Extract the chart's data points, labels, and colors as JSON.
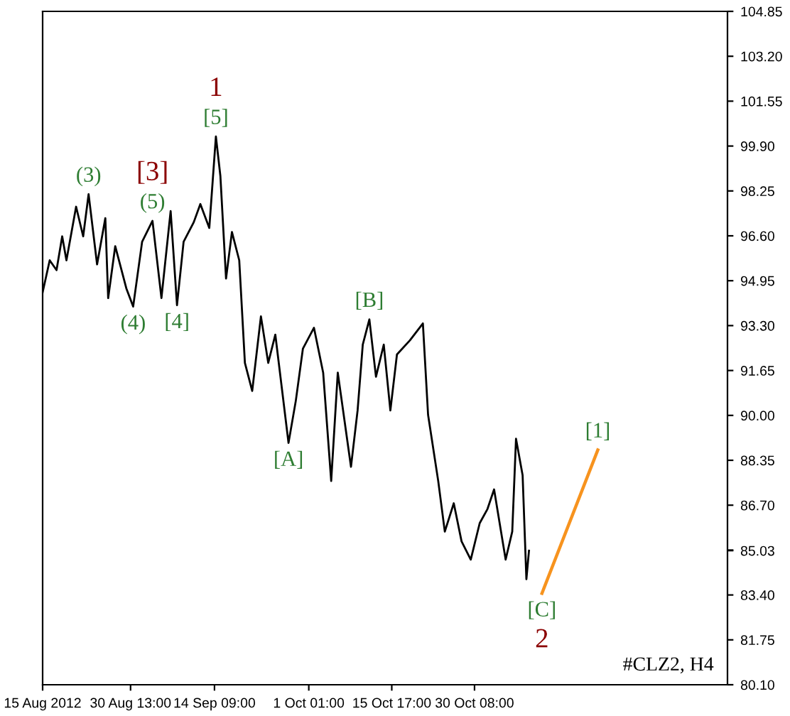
{
  "chart_data": {
    "type": "line",
    "x": [
      "2012-08-15T00:00",
      "2012-08-16T06:00",
      "2012-08-17T11:00",
      "2012-08-18T11:00",
      "2012-08-19T05:00",
      "2012-08-20T22:00",
      "2012-08-22T04:00",
      "2012-08-23T03:00",
      "2012-08-24T15:00",
      "2012-08-26T02:00",
      "2012-08-26T14:00",
      "2012-08-27T20:00",
      "2012-08-29T19:00",
      "2012-08-31T00:00",
      "2012-09-01T14:00",
      "2012-09-03T10:00",
      "2012-09-05T00:00",
      "2012-09-06T15:00",
      "2012-09-07T18:00",
      "2012-09-08T22:00",
      "2012-09-10T17:00",
      "2012-09-11T21:00",
      "2012-09-13T11:00",
      "2012-09-14T15:00",
      "2012-09-15T10:00",
      "2012-09-16T10:00",
      "2012-09-17T11:00",
      "2012-09-18T18:00",
      "2012-09-19T18:00",
      "2012-09-21T01:00",
      "2012-09-22T14:00",
      "2012-09-23T21:00",
      "2012-09-25T03:00",
      "2012-09-27T11:00",
      "2012-09-28T18:00",
      "2012-09-30T00:00",
      "2012-10-01T23:00",
      "2012-10-03T14:00",
      "2012-10-05T00:00",
      "2012-10-06T04:00",
      "2012-10-08T12:00",
      "2012-10-09T16:00",
      "2012-10-10T14:00",
      "2012-10-11T18:00",
      "2012-10-12T22:00",
      "2012-10-14T07:00",
      "2012-10-15T11:00",
      "2012-10-16T15:00",
      "2012-10-18T22:00",
      "2012-10-21T05:00",
      "2012-10-22T03:00",
      "2012-10-23T22:00",
      "2012-10-25T02:00",
      "2012-10-26T16:00",
      "2012-10-28T01:00",
      "2012-10-29T16:00",
      "2012-10-31T06:00",
      "2012-11-01T15:00",
      "2012-11-02T19:00",
      "2012-11-04T20:00",
      "2012-11-06T00:00",
      "2012-11-06T16:00",
      "2012-11-07T20:00",
      "2012-11-08T12:00",
      "2012-11-08T23:00"
    ],
    "series": [
      {
        "color": "#000000",
        "values": [
          94.52,
          95.7,
          95.34,
          96.58,
          95.7,
          97.67,
          96.58,
          98.13,
          95.55,
          97.25,
          94.31,
          96.22,
          94.67,
          94.0,
          96.38,
          97.15,
          94.31,
          97.51,
          94.05,
          96.38,
          97.1,
          97.77,
          96.89,
          100.25,
          98.8,
          95.03,
          96.74,
          95.7,
          91.93,
          90.9,
          93.64,
          91.93,
          92.97,
          88.99,
          90.54,
          92.45,
          93.22,
          91.57,
          87.59,
          91.57,
          88.11,
          90.18,
          92.6,
          93.53,
          91.42,
          92.6,
          90.18,
          92.24,
          92.76,
          93.38,
          90.02,
          87.59,
          85.73,
          86.77,
          85.37,
          84.7,
          86.04,
          86.56,
          87.28,
          84.7,
          85.73,
          89.14,
          87.8,
          83.98,
          85.03
        ]
      },
      {
        "color": "#f7931e",
        "x": [
          "2012-11-11T06:00",
          "2012-11-21T03:00"
        ],
        "values": [
          83.46,
          88.73
        ]
      }
    ],
    "xlim": [
      "2012-08-15T00:00",
      "2012-12-14T01:00"
    ],
    "xticks": [
      {
        "value": "2012-08-15T00:00",
        "label": "15 Aug 2012"
      },
      {
        "value": "2012-08-30T13:00",
        "label": "30 Aug 13:00"
      },
      {
        "value": "2012-09-14T09:00",
        "label": "14 Sep 09:00"
      },
      {
        "value": "2012-10-01T01:00",
        "label": "1 Oct 01:00"
      },
      {
        "value": "2012-10-15T17:00",
        "label": "15 Oct 17:00"
      },
      {
        "value": "2012-10-30T08:00",
        "label": "30 Oct 08:00"
      }
    ],
    "ylim": [
      80.1,
      104.85
    ],
    "yticks": [
      {
        "value": 80.1,
        "label": "80.10"
      },
      81.75,
      {
        "value": 83.4,
        "label": "83.40"
      },
      {
        "value": 85.03,
        "label": "85.03"
      },
      {
        "value": 85.05,
        "label": null
      },
      {
        "value": 86.7,
        "label": "86.70"
      },
      88.35,
      {
        "value": 90.0,
        "label": "90.00"
      },
      91.65,
      {
        "value": 93.3,
        "label": "93.30"
      },
      94.95,
      {
        "value": 96.6,
        "label": "96.60"
      },
      98.25,
      {
        "value": 99.9,
        "label": "99.90"
      },
      101.55,
      {
        "value": 103.2,
        "label": "103.20"
      },
      104.85
    ],
    "grid": false,
    "annotations": [
      {
        "text": "[5]",
        "x": "2012-09-14T15:00",
        "y": 100.25
      },
      {
        "text": "1",
        "x": "2012-09-14T15:00",
        "y": 100.25
      },
      {
        "text": "(5)",
        "x": "2012-09-03T10:00",
        "y": 97.15
      },
      {
        "text": "[3]",
        "x": "2012-09-03T10:00",
        "y": 97.15
      },
      {
        "text": "(3)",
        "x": "2012-08-23T03:00",
        "y": 98.13
      },
      {
        "text": "(4)",
        "x": "2012-08-31T00:00",
        "y": 94.0
      },
      {
        "text": "[4]",
        "x": "2012-09-07T18:00",
        "y": 94.05
      },
      {
        "text": "[A]",
        "x": "2012-09-27T11:00",
        "y": 88.99
      },
      {
        "text": "[B]",
        "x": "2012-10-11T18:00",
        "y": 93.53
      },
      {
        "text": "[C]",
        "x": "2012-11-11T06:00",
        "y": 83.46
      },
      {
        "text": "2",
        "x": "2012-11-11T06:00",
        "y": 83.46
      },
      {
        "text": "[1]",
        "x": "2012-11-21T03:00",
        "y": 88.73
      },
      "#CLZ2, H4"
    ]
  }
}
